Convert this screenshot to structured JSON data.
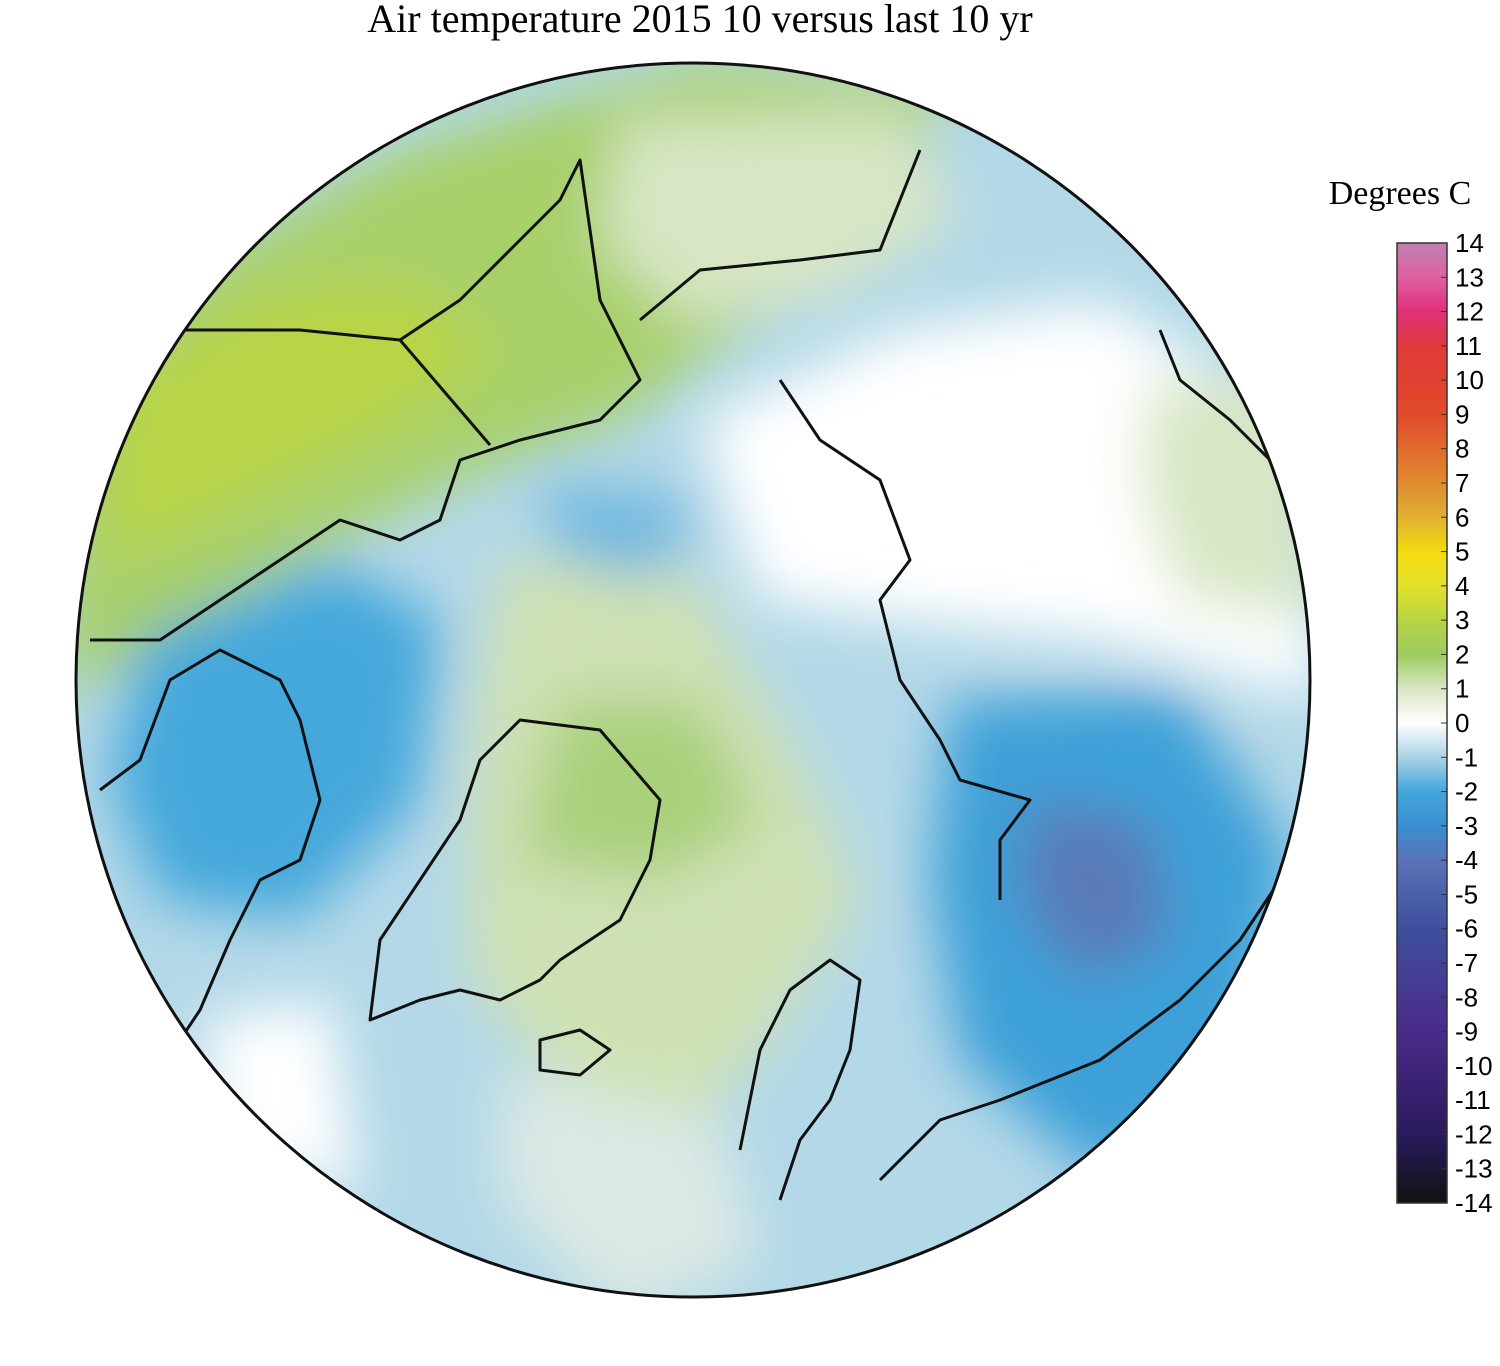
{
  "title": "Air temperature 2015 10 versus last 10 yr",
  "colorbar": {
    "label": "Degrees C",
    "lim": [
      -14,
      14
    ],
    "ticks": [
      14,
      13,
      12,
      11,
      10,
      9,
      8,
      7,
      6,
      5,
      4,
      3,
      2,
      1,
      0,
      -1,
      -2,
      -3,
      -4,
      -5,
      -6,
      -7,
      -8,
      -9,
      -10,
      -11,
      -12,
      -13,
      -14
    ],
    "colorscale": [
      [
        -14,
        "#111111"
      ],
      [
        -12,
        "#2a1a5e"
      ],
      [
        -9,
        "#4b2a8a"
      ],
      [
        -6,
        "#3e4f9e"
      ],
      [
        -4,
        "#5a73b8"
      ],
      [
        -3,
        "#3a8fd0"
      ],
      [
        -2,
        "#43a6dc"
      ],
      [
        -1,
        "#a9d4e6"
      ],
      [
        0,
        "#ffffff"
      ],
      [
        1,
        "#d8e6c4"
      ],
      [
        2,
        "#9ccc5f"
      ],
      [
        3,
        "#b9d444"
      ],
      [
        4,
        "#e4e02a"
      ],
      [
        5,
        "#f2dc10"
      ],
      [
        6,
        "#e0b030"
      ],
      [
        7,
        "#e08a30"
      ],
      [
        9,
        "#e04a2a"
      ],
      [
        11,
        "#e03a3a"
      ],
      [
        12,
        "#e0307a"
      ],
      [
        13,
        "#e060a0"
      ],
      [
        14,
        "#c080b0"
      ]
    ]
  }
}
